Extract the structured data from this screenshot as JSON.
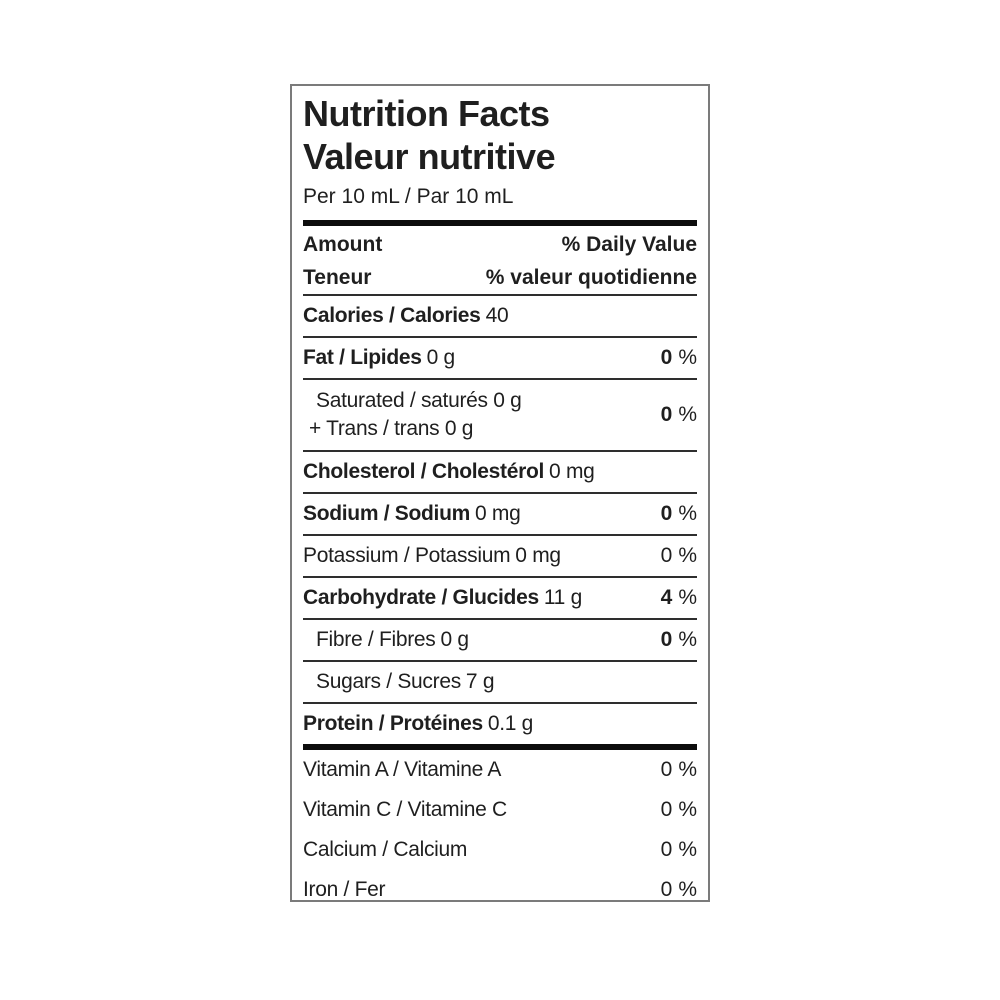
{
  "label": {
    "title_en": "Nutrition Facts",
    "title_fr": "Valeur nutritive",
    "serving": "Per 10 mL / Par 10 mL",
    "percent_sign": "%",
    "header": {
      "amount_en": "Amount",
      "daily_value_en": "% Daily Value",
      "amount_fr": "Teneur",
      "daily_value_fr": "% valeur quotidienne"
    },
    "rows": {
      "calories": {
        "name": "Calories / Calories",
        "amount": "40"
      },
      "fat": {
        "name": "Fat / Lipides",
        "amount": "0 g",
        "dv": "0"
      },
      "saturated_trans": {
        "line1": "Saturated / saturés 0 g",
        "line2": "+ Trans / trans 0 g",
        "dv": "0"
      },
      "cholesterol": {
        "name": "Cholesterol / Cholestérol",
        "amount": "0 mg"
      },
      "sodium": {
        "name": "Sodium / Sodium",
        "amount": "0 mg",
        "dv": "0"
      },
      "potassium": {
        "name": "Potassium / Potassium",
        "amount": "0 mg",
        "dv": "0"
      },
      "carbohydrate": {
        "name": "Carbohydrate / Glucides",
        "amount": "11 g",
        "dv": "4"
      },
      "fibre": {
        "name": "Fibre / Fibres",
        "amount": "0 g",
        "dv": "0"
      },
      "sugars": {
        "name": "Sugars / Sucres",
        "amount": "7 g"
      },
      "protein": {
        "name": "Protein / Protéines",
        "amount": "0.1 g"
      },
      "vitamin_a": {
        "name": "Vitamin A / Vitamine A",
        "dv": "0"
      },
      "vitamin_c": {
        "name": "Vitamin C / Vitamine C",
        "dv": "0"
      },
      "calcium": {
        "name": "Calcium / Calcium",
        "dv": "0"
      },
      "iron": {
        "name": "Iron / Fer",
        "dv": "0"
      }
    },
    "colors": {
      "text": "#1f1f1f",
      "thin_rule": "#2e2e2e",
      "thick_rule": "#0d0d0d",
      "box_border": "#7b7b7b",
      "background": "#ffffff"
    }
  }
}
